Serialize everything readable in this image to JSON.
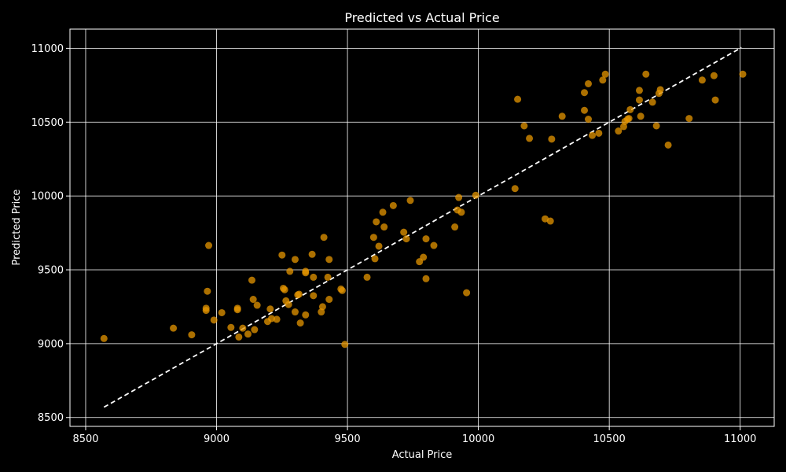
{
  "chart_data": {
    "type": "scatter",
    "title": "Predicted vs Actual Price",
    "xlabel": "Actual Price",
    "ylabel": "Predicted Price",
    "xlim": [
      8440,
      11130
    ],
    "ylim": [
      8440,
      11130
    ],
    "x_ticks": [
      8500,
      9000,
      9500,
      10000,
      10500,
      11000
    ],
    "y_ticks": [
      8500,
      9000,
      9500,
      10000,
      10500,
      11000
    ],
    "grid": true,
    "reference_line": {
      "style": "dashed",
      "from": [
        8570,
        8570
      ],
      "to": [
        11005,
        11005
      ]
    },
    "colors": {
      "background": "#000000",
      "points": "#e69500",
      "grid": "#ffffff",
      "reference": "#ffffff"
    },
    "points": [
      {
        "x": 8570,
        "y": 9035
      },
      {
        "x": 8835,
        "y": 9105
      },
      {
        "x": 8905,
        "y": 9060
      },
      {
        "x": 8960,
        "y": 9240
      },
      {
        "x": 8960,
        "y": 9225
      },
      {
        "x": 8965,
        "y": 9355
      },
      {
        "x": 8970,
        "y": 9665
      },
      {
        "x": 8990,
        "y": 9160
      },
      {
        "x": 9020,
        "y": 9210
      },
      {
        "x": 9055,
        "y": 9110
      },
      {
        "x": 9080,
        "y": 9240
      },
      {
        "x": 9080,
        "y": 9230
      },
      {
        "x": 9085,
        "y": 9045
      },
      {
        "x": 9100,
        "y": 9105
      },
      {
        "x": 9120,
        "y": 9065
      },
      {
        "x": 9135,
        "y": 9430
      },
      {
        "x": 9140,
        "y": 9300
      },
      {
        "x": 9145,
        "y": 9095
      },
      {
        "x": 9155,
        "y": 9260
      },
      {
        "x": 9195,
        "y": 9150
      },
      {
        "x": 9205,
        "y": 9235
      },
      {
        "x": 9210,
        "y": 9170
      },
      {
        "x": 9230,
        "y": 9165
      },
      {
        "x": 9250,
        "y": 9600
      },
      {
        "x": 9255,
        "y": 9375
      },
      {
        "x": 9260,
        "y": 9365
      },
      {
        "x": 9265,
        "y": 9290
      },
      {
        "x": 9275,
        "y": 9265
      },
      {
        "x": 9280,
        "y": 9490
      },
      {
        "x": 9300,
        "y": 9570
      },
      {
        "x": 9300,
        "y": 9215
      },
      {
        "x": 9310,
        "y": 9330
      },
      {
        "x": 9315,
        "y": 9335
      },
      {
        "x": 9320,
        "y": 9140
      },
      {
        "x": 9340,
        "y": 9195
      },
      {
        "x": 9340,
        "y": 9490
      },
      {
        "x": 9340,
        "y": 9480
      },
      {
        "x": 9365,
        "y": 9605
      },
      {
        "x": 9370,
        "y": 9450
      },
      {
        "x": 9370,
        "y": 9325
      },
      {
        "x": 9400,
        "y": 9215
      },
      {
        "x": 9405,
        "y": 9250
      },
      {
        "x": 9410,
        "y": 9720
      },
      {
        "x": 9425,
        "y": 9450
      },
      {
        "x": 9430,
        "y": 9300
      },
      {
        "x": 9430,
        "y": 9570
      },
      {
        "x": 9475,
        "y": 9370
      },
      {
        "x": 9480,
        "y": 9360
      },
      {
        "x": 9490,
        "y": 8995
      },
      {
        "x": 9575,
        "y": 9450
      },
      {
        "x": 9600,
        "y": 9720
      },
      {
        "x": 9605,
        "y": 9575
      },
      {
        "x": 9610,
        "y": 9825
      },
      {
        "x": 9620,
        "y": 9660
      },
      {
        "x": 9635,
        "y": 9890
      },
      {
        "x": 9640,
        "y": 9790
      },
      {
        "x": 9675,
        "y": 9935
      },
      {
        "x": 9715,
        "y": 9755
      },
      {
        "x": 9725,
        "y": 9710
      },
      {
        "x": 9740,
        "y": 9970
      },
      {
        "x": 9775,
        "y": 9555
      },
      {
        "x": 9790,
        "y": 9585
      },
      {
        "x": 9800,
        "y": 9710
      },
      {
        "x": 9800,
        "y": 9440
      },
      {
        "x": 9830,
        "y": 9665
      },
      {
        "x": 9910,
        "y": 9790
      },
      {
        "x": 9920,
        "y": 9905
      },
      {
        "x": 9925,
        "y": 9990
      },
      {
        "x": 9935,
        "y": 9890
      },
      {
        "x": 9955,
        "y": 9345
      },
      {
        "x": 9990,
        "y": 10005
      },
      {
        "x": 10140,
        "y": 10050
      },
      {
        "x": 10150,
        "y": 10655
      },
      {
        "x": 10175,
        "y": 10475
      },
      {
        "x": 10195,
        "y": 10390
      },
      {
        "x": 10255,
        "y": 9845
      },
      {
        "x": 10275,
        "y": 9830
      },
      {
        "x": 10280,
        "y": 10385
      },
      {
        "x": 10320,
        "y": 10540
      },
      {
        "x": 10405,
        "y": 10700
      },
      {
        "x": 10405,
        "y": 10580
      },
      {
        "x": 10420,
        "y": 10520
      },
      {
        "x": 10420,
        "y": 10760
      },
      {
        "x": 10435,
        "y": 10410
      },
      {
        "x": 10460,
        "y": 10425
      },
      {
        "x": 10475,
        "y": 10785
      },
      {
        "x": 10485,
        "y": 10825
      },
      {
        "x": 10535,
        "y": 10440
      },
      {
        "x": 10555,
        "y": 10470
      },
      {
        "x": 10560,
        "y": 10505
      },
      {
        "x": 10570,
        "y": 10520
      },
      {
        "x": 10575,
        "y": 10525
      },
      {
        "x": 10580,
        "y": 10585
      },
      {
        "x": 10615,
        "y": 10715
      },
      {
        "x": 10615,
        "y": 10650
      },
      {
        "x": 10620,
        "y": 10540
      },
      {
        "x": 10640,
        "y": 10825
      },
      {
        "x": 10665,
        "y": 10635
      },
      {
        "x": 10680,
        "y": 10475
      },
      {
        "x": 10690,
        "y": 10695
      },
      {
        "x": 10695,
        "y": 10720
      },
      {
        "x": 10725,
        "y": 10345
      },
      {
        "x": 10805,
        "y": 10525
      },
      {
        "x": 10855,
        "y": 10785
      },
      {
        "x": 10900,
        "y": 10815
      },
      {
        "x": 10905,
        "y": 10650
      },
      {
        "x": 11010,
        "y": 10825
      }
    ]
  }
}
